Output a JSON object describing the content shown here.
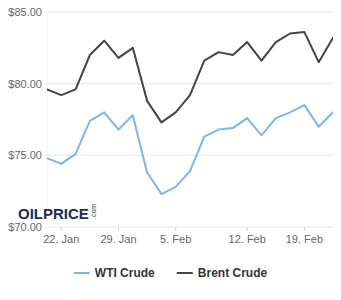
{
  "chart_data": {
    "type": "line",
    "categories": [
      null,
      "22. Jan",
      null,
      null,
      null,
      "29. Jan",
      null,
      null,
      null,
      "5. Feb",
      null,
      null,
      null,
      null,
      "12. Feb",
      null,
      null,
      null,
      "19. Feb",
      null,
      null
    ],
    "series": [
      {
        "name": "WTI Crude",
        "color": "#7cb5ec",
        "values": [
          74.8,
          74.4,
          75.1,
          77.4,
          78.0,
          76.8,
          77.8,
          73.8,
          72.3,
          72.8,
          73.9,
          76.3,
          76.8,
          76.9,
          77.6,
          76.4,
          77.6,
          78.0,
          78.5,
          77.0,
          78.0
        ]
      },
      {
        "name": "Brent Crude",
        "color": "#434348",
        "values": [
          79.6,
          79.2,
          79.6,
          82.0,
          83.0,
          81.8,
          82.5,
          78.8,
          77.3,
          78.0,
          79.2,
          81.6,
          82.2,
          82.0,
          82.9,
          81.6,
          82.9,
          83.5,
          83.6,
          81.5,
          83.2
        ]
      }
    ],
    "ylim": [
      70,
      85
    ],
    "yticks": [
      {
        "value": 70,
        "label": "$70.00"
      },
      {
        "value": 75,
        "label": "$75.00"
      },
      {
        "value": 80,
        "label": "$80.00"
      },
      {
        "value": 85,
        "label": "$85.00"
      }
    ],
    "grid": true,
    "legend": "bottom",
    "annotations": [
      "OILPRICE",
      ".com"
    ]
  }
}
